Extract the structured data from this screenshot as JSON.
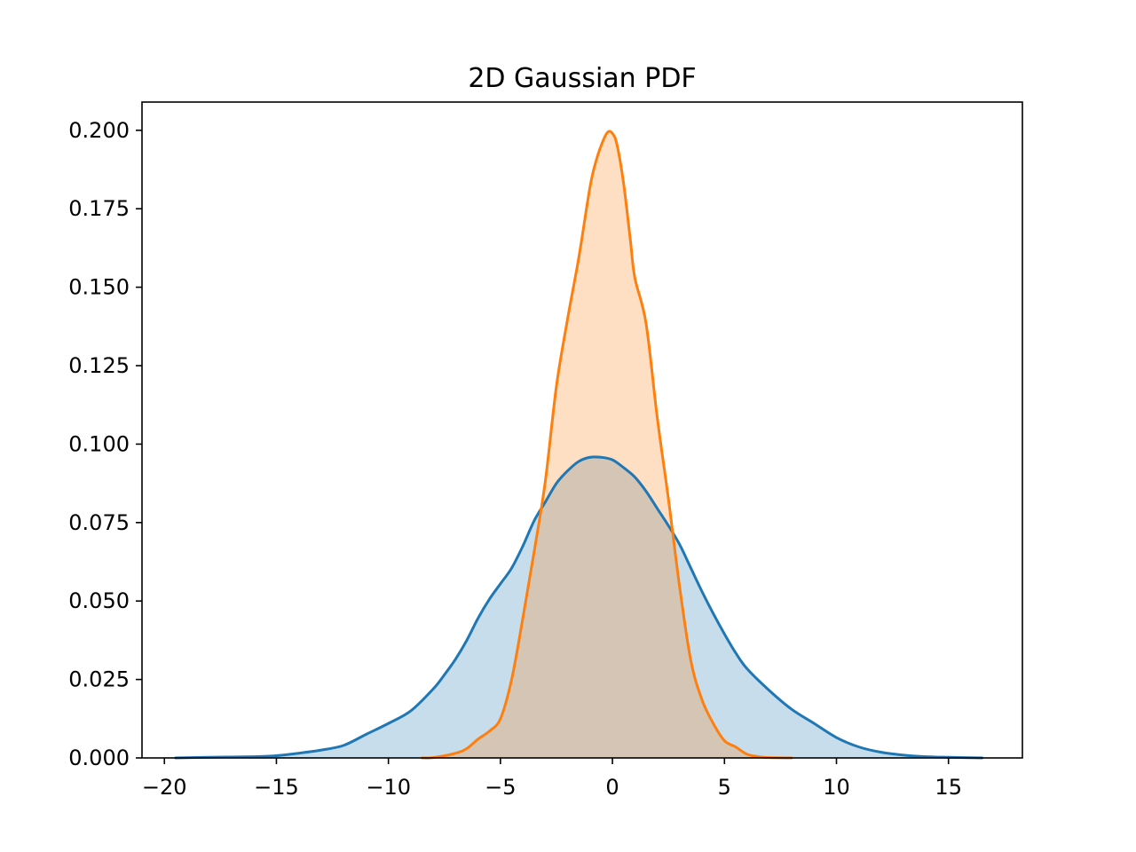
{
  "chart_data": {
    "type": "area",
    "title": "2D Gaussian PDF",
    "xlabel": "",
    "ylabel": "",
    "xlim": [
      -21.0,
      18.3
    ],
    "ylim": [
      0.0,
      0.209
    ],
    "xticks": [
      -20,
      -15,
      -10,
      -5,
      0,
      5,
      10,
      15
    ],
    "xtick_labels": [
      "−20",
      "−15",
      "−10",
      "−5",
      "0",
      "5",
      "10",
      "15"
    ],
    "yticks": [
      0.0,
      0.025,
      0.05,
      0.075,
      0.1,
      0.125,
      0.15,
      0.175,
      0.2
    ],
    "ytick_labels": [
      "0.000",
      "0.025",
      "0.050",
      "0.075",
      "0.100",
      "0.125",
      "0.150",
      "0.175",
      "0.200"
    ],
    "grid": false,
    "legend": "none",
    "series": [
      {
        "color": "#1f77b4",
        "fill_opacity": 0.25,
        "x": [
          -19.5,
          -18,
          -16,
          -15,
          -14,
          -13,
          -12,
          -11,
          -10,
          -9,
          -8,
          -7.5,
          -7,
          -6.5,
          -6,
          -5.5,
          -5,
          -4.5,
          -4,
          -3.5,
          -3,
          -2.5,
          -2,
          -1.5,
          -1,
          -0.5,
          0,
          0.5,
          1,
          1.5,
          2,
          2.5,
          3,
          3.5,
          4,
          4.5,
          5,
          5.5,
          6,
          7,
          8,
          9,
          10,
          11,
          12,
          13,
          14,
          15,
          16.5
        ],
        "y": [
          0.0,
          0.0002,
          0.0004,
          0.0007,
          0.0015,
          0.0025,
          0.004,
          0.0075,
          0.011,
          0.015,
          0.022,
          0.0265,
          0.0315,
          0.0375,
          0.0445,
          0.0505,
          0.0555,
          0.0605,
          0.0675,
          0.0755,
          0.0815,
          0.0875,
          0.0915,
          0.0945,
          0.0958,
          0.0958,
          0.095,
          0.0925,
          0.0895,
          0.085,
          0.0795,
          0.074,
          0.068,
          0.0605,
          0.053,
          0.046,
          0.0395,
          0.0335,
          0.0285,
          0.0215,
          0.0155,
          0.011,
          0.0065,
          0.0035,
          0.0018,
          0.0009,
          0.0004,
          0.0002,
          0.0
        ]
      },
      {
        "color": "#ff7f0e",
        "fill_opacity": 0.25,
        "x": [
          -8.5,
          -8,
          -7,
          -6.5,
          -6,
          -5.5,
          -5,
          -4.5,
          -4,
          -3.5,
          -3,
          -2.5,
          -2,
          -1.5,
          -1,
          -0.7,
          -0.4,
          -0.2,
          0,
          0.2,
          0.5,
          0.8,
          1,
          1.5,
          2,
          2.5,
          3,
          3.5,
          4,
          4.5,
          5,
          5.5,
          6,
          6.5,
          7,
          8
        ],
        "y": [
          0.0,
          0.0001,
          0.0015,
          0.003,
          0.006,
          0.0085,
          0.0125,
          0.025,
          0.0445,
          0.0655,
          0.088,
          0.1185,
          0.14,
          0.1595,
          0.182,
          0.191,
          0.197,
          0.1995,
          0.199,
          0.1955,
          0.183,
          0.165,
          0.153,
          0.1385,
          0.1085,
          0.0825,
          0.0545,
          0.031,
          0.0185,
          0.011,
          0.0055,
          0.0035,
          0.0012,
          0.0004,
          0.0001,
          0.0
        ]
      }
    ]
  }
}
